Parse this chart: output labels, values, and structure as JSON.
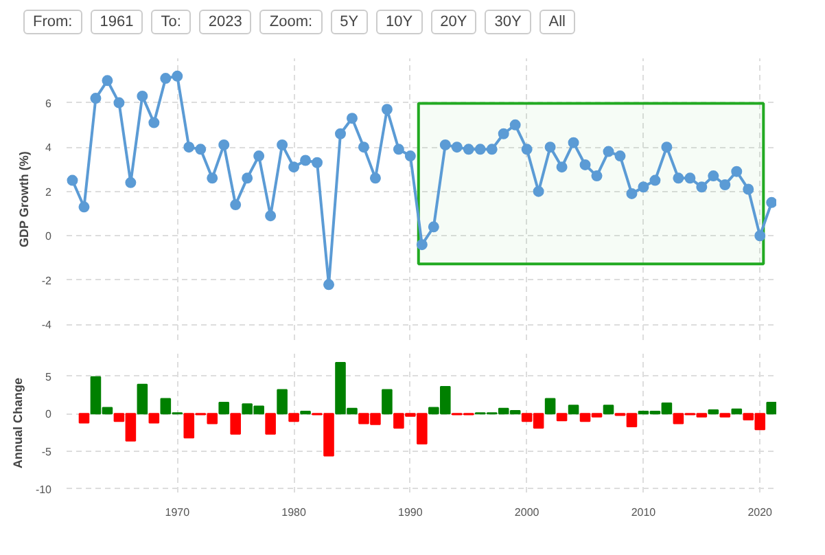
{
  "chart_data": [
    {
      "type": "line",
      "ylabel": "GDP Growth (%)",
      "annotations": [
        "From:",
        "1961",
        "To:",
        "2023",
        "Zoom:",
        "5Y",
        "10Y",
        "20Y",
        "30Y",
        "All"
      ],
      "x": [
        1961,
        1962,
        1963,
        1964,
        1965,
        1966,
        1967,
        1968,
        1969,
        1970,
        1971,
        1972,
        1973,
        1974,
        1975,
        1976,
        1977,
        1978,
        1979,
        1980,
        1981,
        1982,
        1983,
        1984,
        1985,
        1986,
        1987,
        1988,
        1989,
        1990,
        1991,
        1992,
        1993,
        1994,
        1995,
        1996,
        1997,
        1998,
        1999,
        2000,
        2001,
        2002,
        2003,
        2004,
        2005,
        2006,
        2007,
        2008,
        2009,
        2010,
        2011,
        2012,
        2013,
        2014,
        2015,
        2016,
        2017,
        2018,
        2019,
        2020,
        2021
      ],
      "series": [
        {
          "color": "#5b9bd5",
          "values": [
            2.5,
            1.3,
            6.2,
            7.0,
            6.0,
            2.4,
            6.3,
            5.1,
            7.1,
            7.2,
            4.0,
            3.9,
            2.6,
            4.1,
            1.4,
            2.6,
            3.6,
            0.9,
            4.1,
            3.1,
            3.4,
            3.3,
            -2.2,
            4.6,
            5.3,
            4.0,
            2.6,
            5.7,
            3.9,
            3.6,
            -0.4,
            0.4,
            4.1,
            4.0,
            3.9,
            3.9,
            3.9,
            4.6,
            5.0,
            3.9,
            2.0,
            4.0,
            3.1,
            4.2,
            3.2,
            2.7,
            3.8,
            3.6,
            1.9,
            2.2,
            2.5,
            4.0,
            2.6,
            2.6,
            2.2,
            2.7,
            2.3,
            2.9,
            2.1,
            0.0,
            1.5
          ]
        }
      ],
      "bands": [
        {
          "axis": "x",
          "from": 1990.7,
          "to": 2020.3,
          "color": "#22aa22"
        }
      ],
      "xlim": [
        1960.5,
        2021.4
      ],
      "xticks": [
        1970,
        1980,
        1990,
        2000,
        2010,
        2020
      ],
      "ylim": [
        -4.7,
        8
      ],
      "yticks": [
        -4,
        -2,
        0,
        2,
        4,
        6
      ],
      "tick_labels": "y",
      "grid": true,
      "marker": "circle",
      "line_style": "solid"
    },
    {
      "type": "bar",
      "ylabel": "Annual Change",
      "x": [
        1962,
        1963,
        1964,
        1965,
        1966,
        1967,
        1968,
        1969,
        1970,
        1971,
        1972,
        1973,
        1974,
        1975,
        1976,
        1977,
        1978,
        1979,
        1980,
        1981,
        1982,
        1983,
        1984,
        1985,
        1986,
        1987,
        1988,
        1989,
        1990,
        1991,
        1992,
        1993,
        1994,
        1995,
        1996,
        1997,
        1998,
        1999,
        2000,
        2001,
        2002,
        2003,
        2004,
        2005,
        2006,
        2007,
        2008,
        2009,
        2010,
        2011,
        2012,
        2013,
        2014,
        2015,
        2016,
        2017,
        2018,
        2019,
        2020,
        2021
      ],
      "values": [
        -1.2,
        4.9,
        0.8,
        -1.0,
        -3.6,
        3.9,
        -1.2,
        2.0,
        0.1,
        -3.2,
        -0.1,
        -1.3,
        1.5,
        -2.7,
        1.3,
        1.0,
        -2.7,
        3.2,
        -1.0,
        0.3,
        -0.1,
        -5.6,
        6.8,
        0.7,
        -1.3,
        -1.4,
        3.2,
        -1.9,
        -0.3,
        -4.0,
        0.8,
        3.6,
        -0.1,
        -0.1,
        0.1,
        0.1,
        0.7,
        0.4,
        -1.0,
        -1.9,
        2.0,
        -0.9,
        1.1,
        -1.0,
        -0.4,
        1.1,
        -0.2,
        -1.7,
        0.3,
        0.3,
        1.4,
        -1.3,
        -0.1,
        -0.4,
        0.5,
        -0.4,
        0.6,
        -0.8,
        -2.1,
        1.5
      ],
      "colors": [
        "#ff0000",
        "#008000",
        "#008000",
        "#ff0000",
        "#ff0000",
        "#008000",
        "#ff0000",
        "#008000",
        "#008000",
        "#ff0000",
        "#ff0000",
        "#ff0000",
        "#008000",
        "#ff0000",
        "#008000",
        "#008000",
        "#ff0000",
        "#008000",
        "#ff0000",
        "#008000",
        "#ff0000",
        "#ff0000",
        "#008000",
        "#008000",
        "#ff0000",
        "#ff0000",
        "#008000",
        "#ff0000",
        "#ff0000",
        "#ff0000",
        "#008000",
        "#008000",
        "#ff0000",
        "#ff0000",
        "#008000",
        "#008000",
        "#008000",
        "#008000",
        "#ff0000",
        "#ff0000",
        "#008000",
        "#ff0000",
        "#008000",
        "#ff0000",
        "#ff0000",
        "#008000",
        "#ff0000",
        "#ff0000",
        "#008000",
        "#008000",
        "#008000",
        "#ff0000",
        "#ff0000",
        "#ff0000",
        "#008000",
        "#ff0000",
        "#008000",
        "#ff0000",
        "#ff0000",
        "#008000"
      ],
      "xlim": [
        1960.5,
        2021.4
      ],
      "xticks": [
        1970,
        1980,
        1990,
        2000,
        2010,
        2020
      ],
      "ylim": [
        -10.5,
        8
      ],
      "yticks": [
        -10,
        -5,
        0,
        5
      ],
      "grid": true
    }
  ]
}
